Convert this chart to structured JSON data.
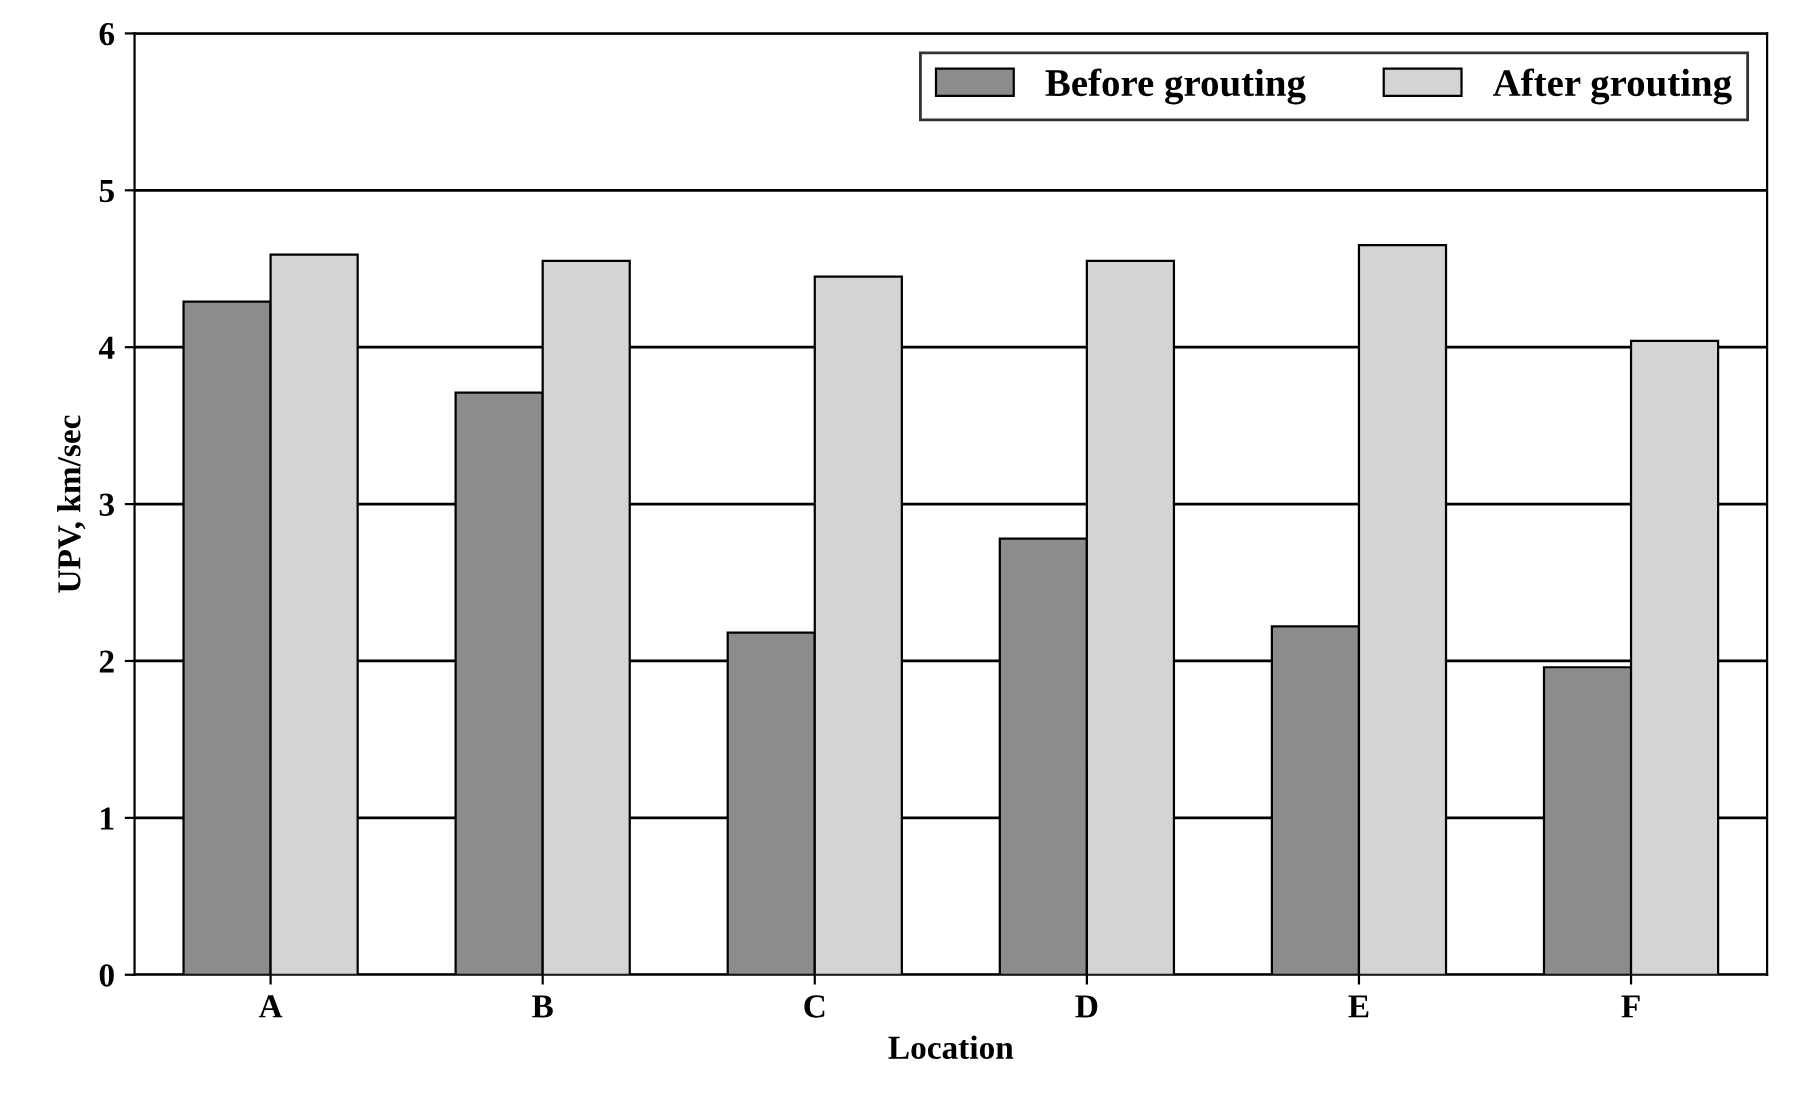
{
  "chart_data": {
    "type": "bar",
    "xlabel": "Location",
    "ylabel": "UPV, km/sec",
    "categories": [
      "A",
      "B",
      "C",
      "D",
      "E",
      "F"
    ],
    "series": [
      {
        "name": "Before grouting",
        "color": "#8c8c8c",
        "values": [
          4.29,
          3.71,
          2.18,
          2.78,
          2.22,
          1.96
        ]
      },
      {
        "name": "After grouting",
        "color": "#d4d4d4",
        "values": [
          4.59,
          4.55,
          4.45,
          4.55,
          4.65,
          4.04
        ]
      }
    ],
    "ylim": [
      0,
      6
    ],
    "yticks": [
      0,
      1,
      2,
      3,
      4,
      5,
      6
    ],
    "grid": "y",
    "legend": "top right"
  }
}
